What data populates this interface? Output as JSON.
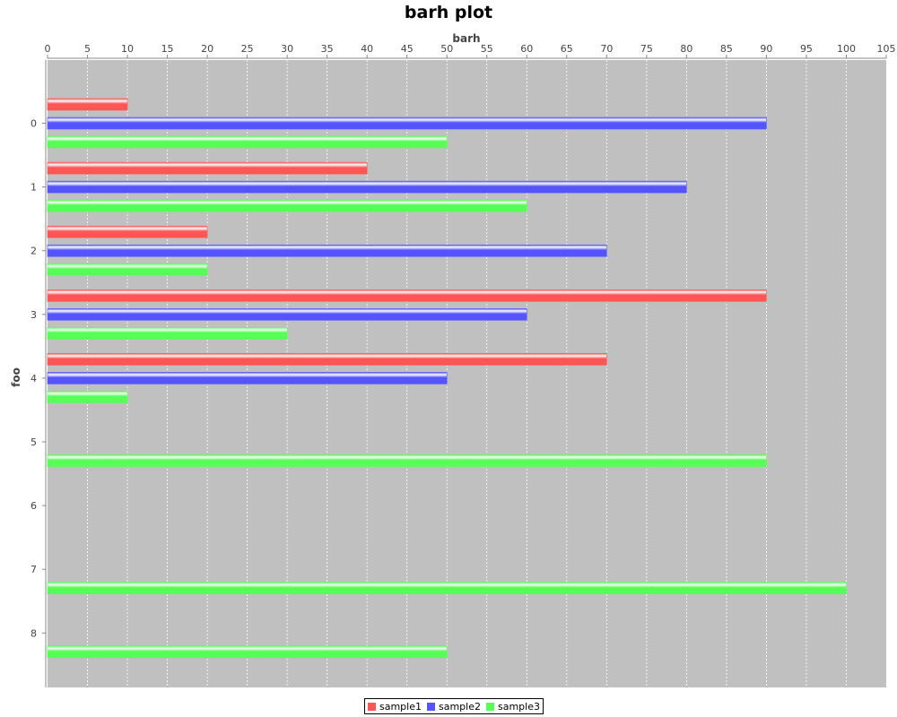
{
  "chart_data": {
    "type": "bar",
    "orientation": "horizontal",
    "title": "barh plot",
    "xlabel": "barh",
    "ylabel": "foo",
    "xlim": [
      0,
      105
    ],
    "xticks": [
      0,
      5,
      10,
      15,
      20,
      25,
      30,
      35,
      40,
      45,
      50,
      55,
      60,
      65,
      70,
      75,
      80,
      85,
      90,
      95,
      100,
      105
    ],
    "categories": [
      "0",
      "1",
      "2",
      "3",
      "4",
      "5",
      "6",
      "7",
      "8"
    ],
    "grid": true,
    "x_axis_position": "top",
    "legend_position": "bottom",
    "background": "#c0c0c0",
    "series": [
      {
        "name": "sample1",
        "color": "#ff5555",
        "values": [
          10,
          40,
          20,
          90,
          70,
          null,
          null,
          null,
          null
        ]
      },
      {
        "name": "sample2",
        "color": "#5555ff",
        "values": [
          90,
          80,
          70,
          60,
          50,
          null,
          null,
          null,
          null
        ]
      },
      {
        "name": "sample3",
        "color": "#55ff55",
        "values": [
          50,
          60,
          20,
          30,
          10,
          90,
          null,
          100,
          50
        ]
      }
    ]
  }
}
